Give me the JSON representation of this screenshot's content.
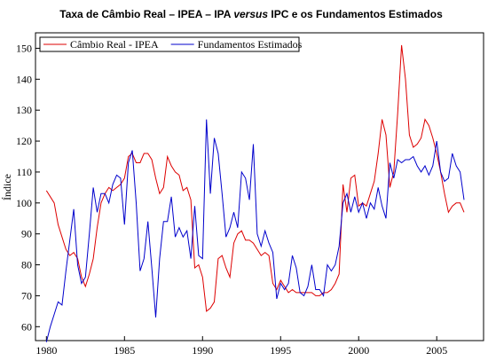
{
  "chart_data": {
    "type": "line",
    "title_parts": [
      "Taxa de Câmbio Real – IPEA – IPA ",
      "versus",
      " IPC e os Fundamentos Estimados"
    ],
    "y_label": "Índice",
    "x": [
      1980,
      1980.25,
      1980.5,
      1980.75,
      1981,
      1981.25,
      1981.5,
      1981.75,
      1982,
      1982.25,
      1982.5,
      1982.75,
      1983,
      1983.25,
      1983.5,
      1983.75,
      1984,
      1984.25,
      1984.5,
      1984.75,
      1985,
      1985.25,
      1985.5,
      1985.75,
      1986,
      1986.25,
      1986.5,
      1986.75,
      1987,
      1987.25,
      1987.5,
      1987.75,
      1988,
      1988.25,
      1988.5,
      1988.75,
      1989,
      1989.25,
      1989.5,
      1989.75,
      1990,
      1990.25,
      1990.5,
      1990.75,
      1991,
      1991.25,
      1991.5,
      1991.75,
      1992,
      1992.25,
      1992.5,
      1992.75,
      1993,
      1993.25,
      1993.5,
      1993.75,
      1994,
      1994.25,
      1994.5,
      1994.75,
      1995,
      1995.25,
      1995.5,
      1995.75,
      1996,
      1996.25,
      1996.5,
      1996.75,
      1997,
      1997.25,
      1997.5,
      1997.75,
      1998,
      1998.25,
      1998.5,
      1998.75,
      1999,
      1999.25,
      1999.5,
      1999.75,
      2000,
      2000.25,
      2000.5,
      2000.75,
      2001,
      2001.25,
      2001.5,
      2001.75,
      2002,
      2002.25,
      2002.5,
      2002.75,
      2003,
      2003.25,
      2003.5,
      2003.75,
      2004,
      2004.25,
      2004.5,
      2004.75,
      2005,
      2005.25,
      2005.5,
      2005.75,
      2006,
      2006.25,
      2006.5,
      2006.75
    ],
    "series": [
      {
        "name": "Câmbio Real - IPEA",
        "color": "#dd0000",
        "values": [
          104,
          102,
          100,
          93,
          89,
          85,
          83,
          84,
          82,
          76,
          73,
          77,
          82,
          92,
          100,
          103,
          105,
          104,
          105,
          106,
          108,
          115,
          116,
          113,
          113,
          116,
          116,
          114,
          108,
          103,
          105,
          115,
          112,
          110,
          109,
          104,
          105,
          101,
          79,
          80,
          76,
          65,
          66,
          68,
          82,
          83,
          79,
          76,
          87,
          90,
          91,
          88,
          88,
          87,
          85,
          83,
          84,
          83,
          74,
          72,
          75,
          73,
          71,
          72,
          71,
          71,
          71,
          71,
          71,
          70,
          70,
          71,
          71,
          72,
          74,
          77,
          106,
          97,
          108,
          109,
          99,
          100,
          99,
          103,
          107,
          116,
          127,
          122,
          105,
          110,
          129,
          151,
          140,
          122,
          118,
          119,
          121,
          127,
          125,
          121,
          116,
          110,
          103,
          97,
          99,
          100,
          100,
          97
        ]
      },
      {
        "name": "Fundamentos Estimados",
        "color": "#0000cc",
        "values": [
          55,
          60,
          64,
          68,
          67,
          78,
          88,
          98,
          80,
          74,
          76,
          90,
          105,
          97,
          103,
          103,
          100,
          106,
          109,
          108,
          93,
          113,
          117,
          100,
          78,
          82,
          94,
          79,
          63,
          82,
          94,
          94,
          102,
          89,
          92,
          89,
          91,
          82,
          99,
          83,
          82,
          127,
          103,
          121,
          116,
          103,
          89,
          92,
          97,
          92,
          110,
          108,
          101,
          119,
          90,
          86,
          91,
          87,
          84,
          69,
          74,
          72,
          74,
          83,
          79,
          71,
          70,
          73,
          80,
          72,
          72,
          70,
          80,
          78,
          80,
          86,
          100,
          103,
          97,
          102,
          97,
          100,
          95,
          100,
          98,
          105,
          99,
          95,
          113,
          108,
          114,
          113,
          114,
          114,
          115,
          112,
          110,
          112,
          109,
          112,
          120,
          110,
          107,
          108,
          116,
          112,
          110,
          101
        ]
      }
    ],
    "xlim": [
      1979.3,
      2008
    ],
    "ylim": [
      55.5,
      155
    ],
    "xticks": [
      1980,
      1985,
      1990,
      1995,
      2000,
      2005
    ],
    "yticks": [
      60,
      70,
      80,
      90,
      100,
      110,
      120,
      130,
      140,
      150
    ],
    "legend": "upper-left"
  }
}
